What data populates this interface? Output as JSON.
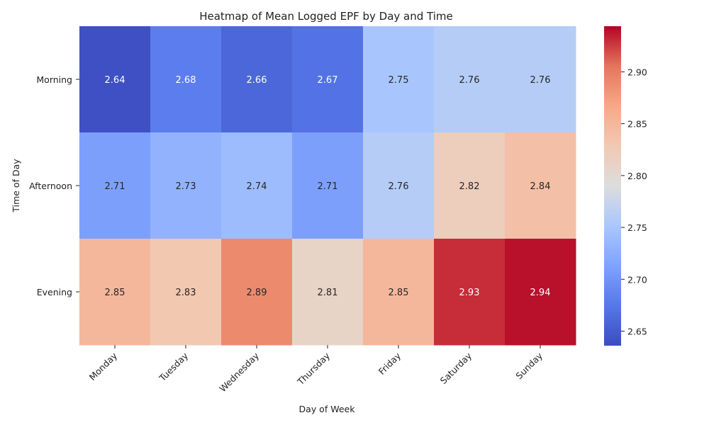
{
  "chart_data": {
    "type": "heatmap",
    "title": "Heatmap of Mean Logged EPF by Day and Time",
    "xlabel": "Day of Week",
    "ylabel": "Time of Day",
    "x_categories": [
      "Monday",
      "Tuesday",
      "Wednesday",
      "Thursday",
      "Friday",
      "Saturday",
      "Sunday"
    ],
    "y_categories": [
      "Morning",
      "Afternoon",
      "Evening"
    ],
    "values": [
      [
        2.64,
        2.68,
        2.66,
        2.67,
        2.75,
        2.76,
        2.76
      ],
      [
        2.71,
        2.73,
        2.74,
        2.71,
        2.76,
        2.82,
        2.84
      ],
      [
        2.85,
        2.83,
        2.89,
        2.81,
        2.85,
        2.93,
        2.94
      ]
    ],
    "colormap": "coolwarm",
    "vmin": 2.636,
    "vmax": 2.944,
    "colorbar_ticks": [
      "2.65",
      "2.70",
      "2.75",
      "2.80",
      "2.85",
      "2.90"
    ],
    "annotations": true
  }
}
